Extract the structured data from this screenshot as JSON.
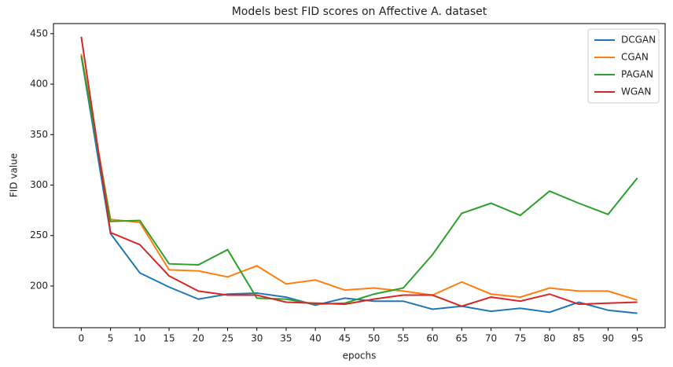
{
  "chart_data": {
    "type": "line",
    "title": "Models best FID scores on Affective A. dataset",
    "x_label": "epochs",
    "y_label": "FID value",
    "x": [
      0,
      5,
      10,
      15,
      20,
      25,
      30,
      35,
      40,
      45,
      50,
      55,
      60,
      65,
      70,
      75,
      80,
      85,
      90,
      95
    ],
    "series": [
      {
        "name": "DCGAN",
        "color": "#1f77b4",
        "values": [
          428,
          252,
          213,
          199,
          187,
          192,
          193,
          189,
          181,
          188,
          185,
          185,
          177,
          180,
          175,
          178,
          174,
          184,
          176,
          173
        ]
      },
      {
        "name": "CGAN",
        "color": "#ff7f0e",
        "values": [
          430,
          266,
          263,
          216,
          215,
          209,
          220,
          202,
          206,
          196,
          198,
          195,
          191,
          204,
          192,
          189,
          198,
          195,
          195,
          186
        ]
      },
      {
        "name": "PAGAN",
        "color": "#2ca02c",
        "values": [
          428,
          264,
          265,
          222,
          221,
          236,
          188,
          187,
          182,
          183,
          192,
          198,
          231,
          272,
          282,
          270,
          294,
          282,
          271,
          307
        ]
      },
      {
        "name": "WGAN",
        "color": "#d62728",
        "values": [
          447,
          253,
          241,
          210,
          195,
          191,
          191,
          184,
          183,
          182,
          187,
          191,
          191,
          180,
          189,
          185,
          192,
          182,
          183,
          184
        ]
      }
    ],
    "xlim": [
      -4.75,
      99.75
    ],
    "xticks": [
      0,
      5,
      10,
      15,
      20,
      25,
      30,
      35,
      40,
      45,
      50,
      55,
      60,
      65,
      70,
      75,
      80,
      85,
      90,
      95
    ],
    "ylim": [
      158.7,
      460
    ],
    "yticks": [
      200,
      250,
      300,
      350,
      400,
      450
    ],
    "legend": "upper right"
  }
}
